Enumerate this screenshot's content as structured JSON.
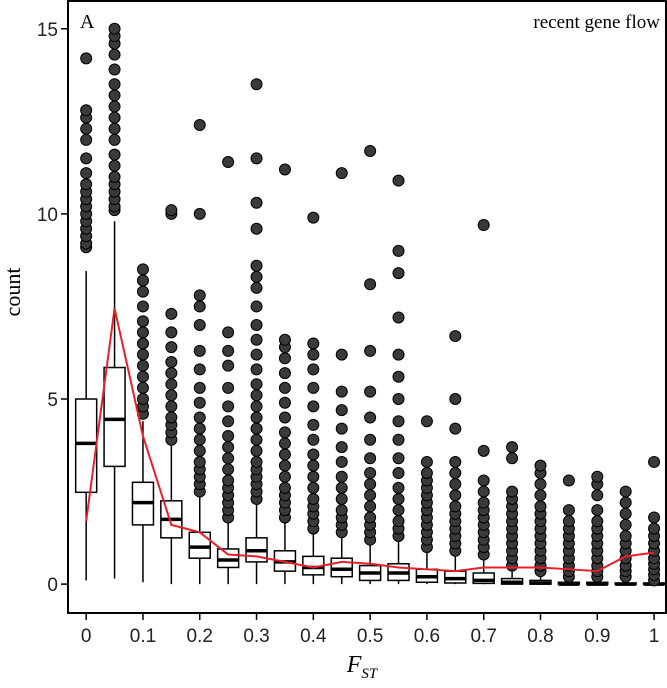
{
  "chart_data": {
    "type": "boxplot",
    "panel_label": "A",
    "annotation": "recent gene flow",
    "ylabel": "count",
    "xlabel": {
      "main": "F",
      "sub": "ST"
    },
    "xlim": [
      -0.032,
      1.021
    ],
    "ylim": [
      -0.78,
      15.75
    ],
    "xticks": [
      0,
      0.1,
      0.2,
      0.3,
      0.4,
      0.5,
      0.6,
      0.7,
      0.8,
      0.9,
      1
    ],
    "yticks": [
      0,
      5,
      10,
      15
    ],
    "box_color": "#ffffff",
    "outlier_color": "#3a3a3a",
    "x": [
      0,
      0.05,
      0.1,
      0.15,
      0.2,
      0.25,
      0.3,
      0.35,
      0.4,
      0.45,
      0.5,
      0.55,
      0.6,
      0.65,
      0.7,
      0.75,
      0.8,
      0.85,
      0.9,
      0.95,
      1
    ],
    "boxes": [
      {
        "whisker_low": 0.1,
        "q1": 2.48,
        "median": 3.8,
        "q3": 5.0,
        "whisker_high": 8.46,
        "outliers": [
          9.1,
          9.2,
          9.4,
          9.6,
          9.8,
          10.0,
          10.2,
          10.4,
          10.6,
          10.8,
          11.1,
          11.5,
          12.0,
          12.3,
          12.6,
          12.8,
          14.2
        ]
      },
      {
        "whisker_low": 0.15,
        "q1": 3.18,
        "median": 4.45,
        "q3": 5.85,
        "whisker_high": 9.8,
        "outliers": [
          10.1,
          10.2,
          10.4,
          10.6,
          10.8,
          11.0,
          11.3,
          11.6,
          12.0,
          12.3,
          12.6,
          12.9,
          13.2,
          13.5,
          13.9,
          14.3,
          14.6,
          14.8,
          15.0
        ]
      },
      {
        "whisker_low": 0.05,
        "q1": 1.6,
        "median": 2.2,
        "q3": 2.75,
        "whisker_high": 4.4,
        "outliers": [
          4.6,
          4.8,
          5.0,
          5.3,
          5.6,
          5.9,
          6.2,
          6.5,
          6.8,
          7.1,
          7.5,
          7.9,
          8.2,
          8.5
        ]
      },
      {
        "whisker_low": 0,
        "q1": 1.25,
        "median": 1.75,
        "q3": 2.25,
        "whisker_high": 3.75,
        "outliers": [
          3.9,
          4.1,
          4.3,
          4.5,
          4.8,
          5.1,
          5.4,
          5.7,
          6.0,
          6.4,
          6.8,
          7.3,
          10.0,
          10.1
        ]
      },
      {
        "whisker_low": 0,
        "q1": 0.7,
        "median": 1.0,
        "q3": 1.4,
        "whisker_high": 2.4,
        "outliers": [
          2.5,
          2.7,
          2.9,
          3.1,
          3.3,
          3.6,
          3.9,
          4.2,
          4.5,
          4.9,
          5.3,
          5.8,
          6.3,
          7.0,
          7.5,
          7.8,
          10.0,
          12.4
        ]
      },
      {
        "whisker_low": 0,
        "q1": 0.45,
        "median": 0.65,
        "q3": 0.95,
        "whisker_high": 1.7,
        "outliers": [
          1.8,
          2.0,
          2.2,
          2.4,
          2.6,
          2.8,
          3.1,
          3.4,
          3.7,
          4.0,
          4.4,
          4.8,
          5.3,
          5.9,
          6.3,
          6.8,
          11.4
        ]
      },
      {
        "whisker_low": 0,
        "q1": 0.6,
        "median": 0.9,
        "q3": 1.25,
        "whisker_high": 2.2,
        "outliers": [
          2.3,
          2.5,
          2.7,
          2.9,
          3.1,
          3.3,
          3.6,
          3.9,
          4.2,
          4.5,
          4.8,
          5.1,
          5.4,
          5.8,
          6.2,
          6.6,
          7.0,
          7.5,
          8.0,
          8.3,
          8.6,
          9.6,
          10.3,
          11.5,
          13.5
        ]
      },
      {
        "whisker_low": 0,
        "q1": 0.35,
        "median": 0.6,
        "q3": 0.9,
        "whisker_high": 1.7,
        "outliers": [
          1.8,
          2.0,
          2.2,
          2.4,
          2.6,
          2.9,
          3.2,
          3.5,
          3.8,
          4.1,
          4.5,
          4.9,
          5.3,
          5.7,
          6.1,
          6.4,
          6.6,
          11.2
        ]
      },
      {
        "whisker_low": 0,
        "q1": 0.25,
        "median": 0.45,
        "q3": 0.75,
        "whisker_high": 1.4,
        "outliers": [
          1.5,
          1.7,
          1.9,
          2.1,
          2.3,
          2.6,
          2.9,
          3.2,
          3.5,
          3.9,
          4.3,
          4.8,
          5.3,
          5.8,
          6.2,
          6.5,
          9.9
        ]
      },
      {
        "whisker_low": 0,
        "q1": 0.2,
        "median": 0.4,
        "q3": 0.7,
        "whisker_high": 1.3,
        "outliers": [
          1.4,
          1.6,
          1.8,
          2.0,
          2.3,
          2.6,
          2.9,
          3.3,
          3.7,
          4.2,
          4.7,
          5.2,
          6.2,
          11.1
        ]
      },
      {
        "whisker_low": 0,
        "q1": 0.1,
        "median": 0.3,
        "q3": 0.5,
        "whisker_high": 1.1,
        "outliers": [
          1.2,
          1.4,
          1.6,
          1.8,
          2.1,
          2.4,
          2.7,
          3.0,
          3.4,
          3.9,
          4.5,
          5.2,
          6.3,
          8.1,
          11.7
        ]
      },
      {
        "whisker_low": 0,
        "q1": 0.1,
        "median": 0.3,
        "q3": 0.55,
        "whisker_high": 1.2,
        "outliers": [
          1.3,
          1.5,
          1.7,
          2.0,
          2.3,
          2.6,
          3.0,
          3.4,
          3.9,
          4.4,
          5.0,
          5.6,
          6.2,
          7.2,
          8.4,
          9.0,
          10.9
        ]
      },
      {
        "whisker_low": 0,
        "q1": 0.05,
        "median": 0.2,
        "q3": 0.4,
        "whisker_high": 0.9,
        "outliers": [
          1.0,
          1.2,
          1.4,
          1.6,
          1.8,
          2.0,
          2.2,
          2.4,
          2.6,
          2.8,
          3.0,
          3.3,
          4.4
        ]
      },
      {
        "whisker_low": 0,
        "q1": 0.03,
        "median": 0.15,
        "q3": 0.35,
        "whisker_high": 0.8,
        "outliers": [
          0.9,
          1.1,
          1.3,
          1.5,
          1.7,
          1.9,
          2.1,
          2.4,
          2.7,
          3.0,
          3.3,
          4.2,
          5.0,
          6.7
        ]
      },
      {
        "whisker_low": 0,
        "q1": 0.02,
        "median": 0.1,
        "q3": 0.3,
        "whisker_high": 0.7,
        "outliers": [
          0.8,
          1.0,
          1.2,
          1.4,
          1.6,
          1.8,
          2.0,
          2.2,
          2.5,
          2.8,
          3.6,
          9.7
        ]
      },
      {
        "whisker_low": 0,
        "q1": 0,
        "median": 0.05,
        "q3": 0.15,
        "whisker_high": 0.4,
        "outliers": [
          0.5,
          0.7,
          0.9,
          1.1,
          1.3,
          1.5,
          1.7,
          1.9,
          2.1,
          2.3,
          2.5,
          3.4,
          3.7
        ]
      },
      {
        "whisker_low": 0,
        "q1": 0,
        "median": 0.03,
        "q3": 0.1,
        "whisker_high": 0.25,
        "outliers": [
          0.35,
          0.5,
          0.7,
          0.9,
          1.1,
          1.3,
          1.5,
          1.7,
          1.9,
          2.1,
          2.4,
          2.7,
          3.0,
          3.2
        ]
      },
      {
        "whisker_low": 0,
        "q1": 0,
        "median": 0,
        "q3": 0.05,
        "whisker_high": 0.1,
        "outliers": [
          0.2,
          0.35,
          0.5,
          0.7,
          0.9,
          1.1,
          1.3,
          1.5,
          1.7,
          2.0,
          2.8
        ]
      },
      {
        "whisker_low": 0,
        "q1": 0,
        "median": 0,
        "q3": 0.05,
        "whisker_high": 0.1,
        "outliers": [
          0.2,
          0.35,
          0.5,
          0.7,
          0.9,
          1.1,
          1.3,
          1.5,
          1.7,
          2.0,
          2.4,
          2.7,
          2.9
        ]
      },
      {
        "whisker_low": 0,
        "q1": 0,
        "median": 0,
        "q3": 0.03,
        "whisker_high": 0.1,
        "outliers": [
          0.2,
          0.35,
          0.5,
          0.7,
          0.9,
          1.1,
          1.3,
          1.6,
          1.9,
          2.2,
          2.5
        ]
      },
      {
        "whisker_low": 0,
        "q1": 0,
        "median": 0,
        "q3": 0.03,
        "whisker_high": 0.05,
        "outliers": [
          0.1,
          0.25,
          0.4,
          0.55,
          0.7,
          0.9,
          1.1,
          1.3,
          1.5,
          1.8,
          3.3
        ]
      }
    ],
    "line": {
      "color": "#e8202a",
      "values": [
        1.7,
        7.45,
        4.0,
        1.6,
        1.4,
        0.8,
        0.75,
        0.6,
        0.45,
        0.6,
        0.55,
        0.45,
        0.4,
        0.35,
        0.45,
        0.45,
        0.45,
        0.4,
        0.35,
        0.75,
        0.85
      ]
    }
  }
}
